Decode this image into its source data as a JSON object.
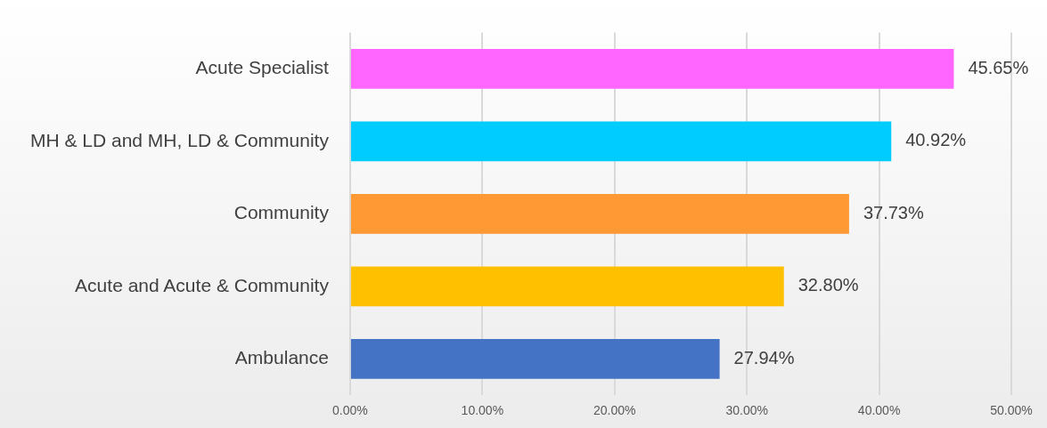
{
  "chart_data": {
    "type": "bar",
    "orientation": "horizontal",
    "categories": [
      "Acute Specialist",
      "MH & LD and MH, LD & Community",
      "Community",
      "Acute and Acute & Community",
      "Ambulance"
    ],
    "values": [
      45.65,
      40.92,
      37.73,
      32.8,
      27.94
    ],
    "colors": [
      "#ff66ff",
      "#00ccff",
      "#ff9933",
      "#ffc000",
      "#4472c4"
    ],
    "value_labels": [
      "45.65%",
      "40.92%",
      "37.73%",
      "32.80%",
      "27.94%"
    ],
    "xlim": [
      0,
      50
    ],
    "xticks": [
      {
        "value": 0,
        "label": "0.00%"
      },
      {
        "value": 10,
        "label": "10.00%"
      },
      {
        "value": 20,
        "label": "20.00%"
      },
      {
        "value": 30,
        "label": "30.00%"
      },
      {
        "value": 40,
        "label": "40.00%"
      },
      {
        "value": 50,
        "label": "50.00%"
      }
    ],
    "grid": "x",
    "legend": false
  }
}
